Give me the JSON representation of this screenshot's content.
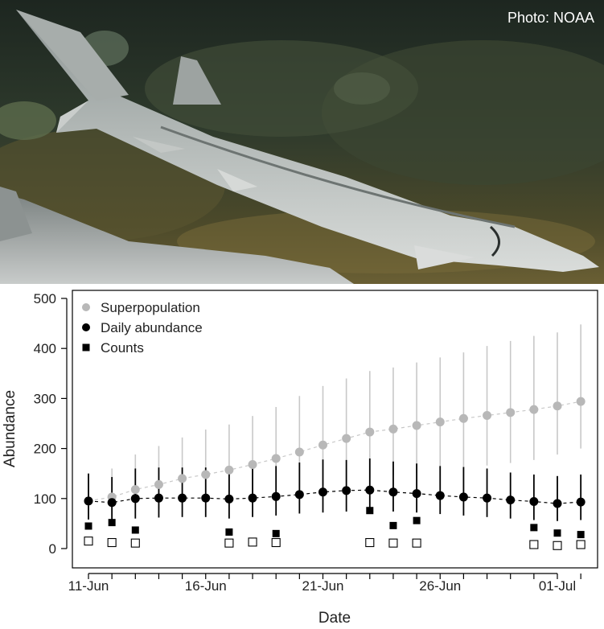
{
  "photo": {
    "credit": "Photo: NOAA"
  },
  "colors": {
    "superpopulation": "#b8b8b8",
    "superpopulation_errorbar": "#c8c8c8",
    "daily": "#000000"
  },
  "chart_data": {
    "type": "scatter",
    "xlabel": "Date",
    "ylabel": "Abundance",
    "ylim": [
      0,
      520
    ],
    "yticks": [
      0,
      100,
      200,
      300,
      400,
      500
    ],
    "x_tick_labels": [
      "11-Jun",
      "16-Jun",
      "21-Jun",
      "26-Jun",
      "01-Jul"
    ],
    "x_tick_days": [
      0,
      5,
      10,
      15,
      20
    ],
    "xlim": [
      -1,
      21
    ],
    "legend": {
      "position": "top-left",
      "entries": [
        {
          "label": "Superpopulation",
          "marker": "circle-gray"
        },
        {
          "label": "Daily abundance",
          "marker": "circle-black"
        },
        {
          "label": "Counts",
          "marker": "square-black"
        }
      ]
    },
    "series": [
      {
        "name": "Superpopulation",
        "x": [
          "11-Jun",
          "12-Jun",
          "13-Jun",
          "14-Jun",
          "15-Jun",
          "16-Jun",
          "17-Jun",
          "18-Jun",
          "19-Jun",
          "20-Jun",
          "21-Jun",
          "22-Jun",
          "23-Jun",
          "24-Jun",
          "25-Jun",
          "26-Jun",
          "27-Jun",
          "28-Jun",
          "29-Jun",
          "30-Jun",
          "01-Jul",
          "02-Jul"
        ],
        "y": [
          95,
          103,
          118,
          128,
          140,
          148,
          157,
          168,
          180,
          193,
          207,
          220,
          233,
          239,
          246,
          253,
          260,
          266,
          272,
          278,
          285,
          294
        ],
        "lower": [
          60,
          65,
          75,
          80,
          88,
          93,
          98,
          104,
          111,
          119,
          127,
          134,
          142,
          146,
          151,
          156,
          161,
          166,
          171,
          177,
          188,
          200
        ],
        "upper": [
          150,
          160,
          188,
          205,
          222,
          238,
          248,
          265,
          283,
          305,
          325,
          340,
          355,
          362,
          372,
          382,
          392,
          405,
          415,
          425,
          432,
          448
        ]
      },
      {
        "name": "Daily abundance",
        "x": [
          "11-Jun",
          "12-Jun",
          "13-Jun",
          "14-Jun",
          "15-Jun",
          "16-Jun",
          "17-Jun",
          "18-Jun",
          "19-Jun",
          "20-Jun",
          "21-Jun",
          "22-Jun",
          "23-Jun",
          "24-Jun",
          "25-Jun",
          "26-Jun",
          "27-Jun",
          "28-Jun",
          "29-Jun",
          "30-Jun",
          "01-Jul",
          "02-Jul"
        ],
        "y": [
          95,
          92,
          100,
          101,
          101,
          101,
          99,
          101,
          104,
          108,
          113,
          116,
          117,
          113,
          110,
          106,
          103,
          101,
          97,
          94,
          90,
          93
        ],
        "lower": [
          58,
          57,
          60,
          62,
          63,
          63,
          60,
          63,
          66,
          70,
          72,
          74,
          76,
          74,
          72,
          69,
          66,
          63,
          60,
          57,
          55,
          57
        ],
        "upper": [
          150,
          143,
          160,
          162,
          162,
          162,
          160,
          162,
          165,
          172,
          178,
          177,
          180,
          174,
          170,
          165,
          163,
          160,
          152,
          148,
          145,
          148
        ]
      },
      {
        "name": "Counts",
        "filled": {
          "x": [
            "11-Jun",
            "12-Jun",
            "13-Jun",
            "17-Jun",
            "18-Jun",
            "19-Jun",
            "23-Jun",
            "24-Jun",
            "25-Jun",
            "30-Jun",
            "01-Jul",
            "02-Jul"
          ],
          "y": [
            45,
            52,
            37,
            33,
            13,
            30,
            76,
            46,
            56,
            42,
            31,
            28
          ]
        },
        "open": {
          "x": [
            "11-Jun",
            "12-Jun",
            "13-Jun",
            "17-Jun",
            "18-Jun",
            "19-Jun",
            "23-Jun",
            "24-Jun",
            "25-Jun",
            "30-Jun",
            "01-Jul",
            "02-Jul"
          ],
          "y": [
            15,
            12,
            11,
            11,
            13,
            12,
            12,
            11,
            11,
            8,
            6,
            8
          ]
        }
      }
    ]
  }
}
